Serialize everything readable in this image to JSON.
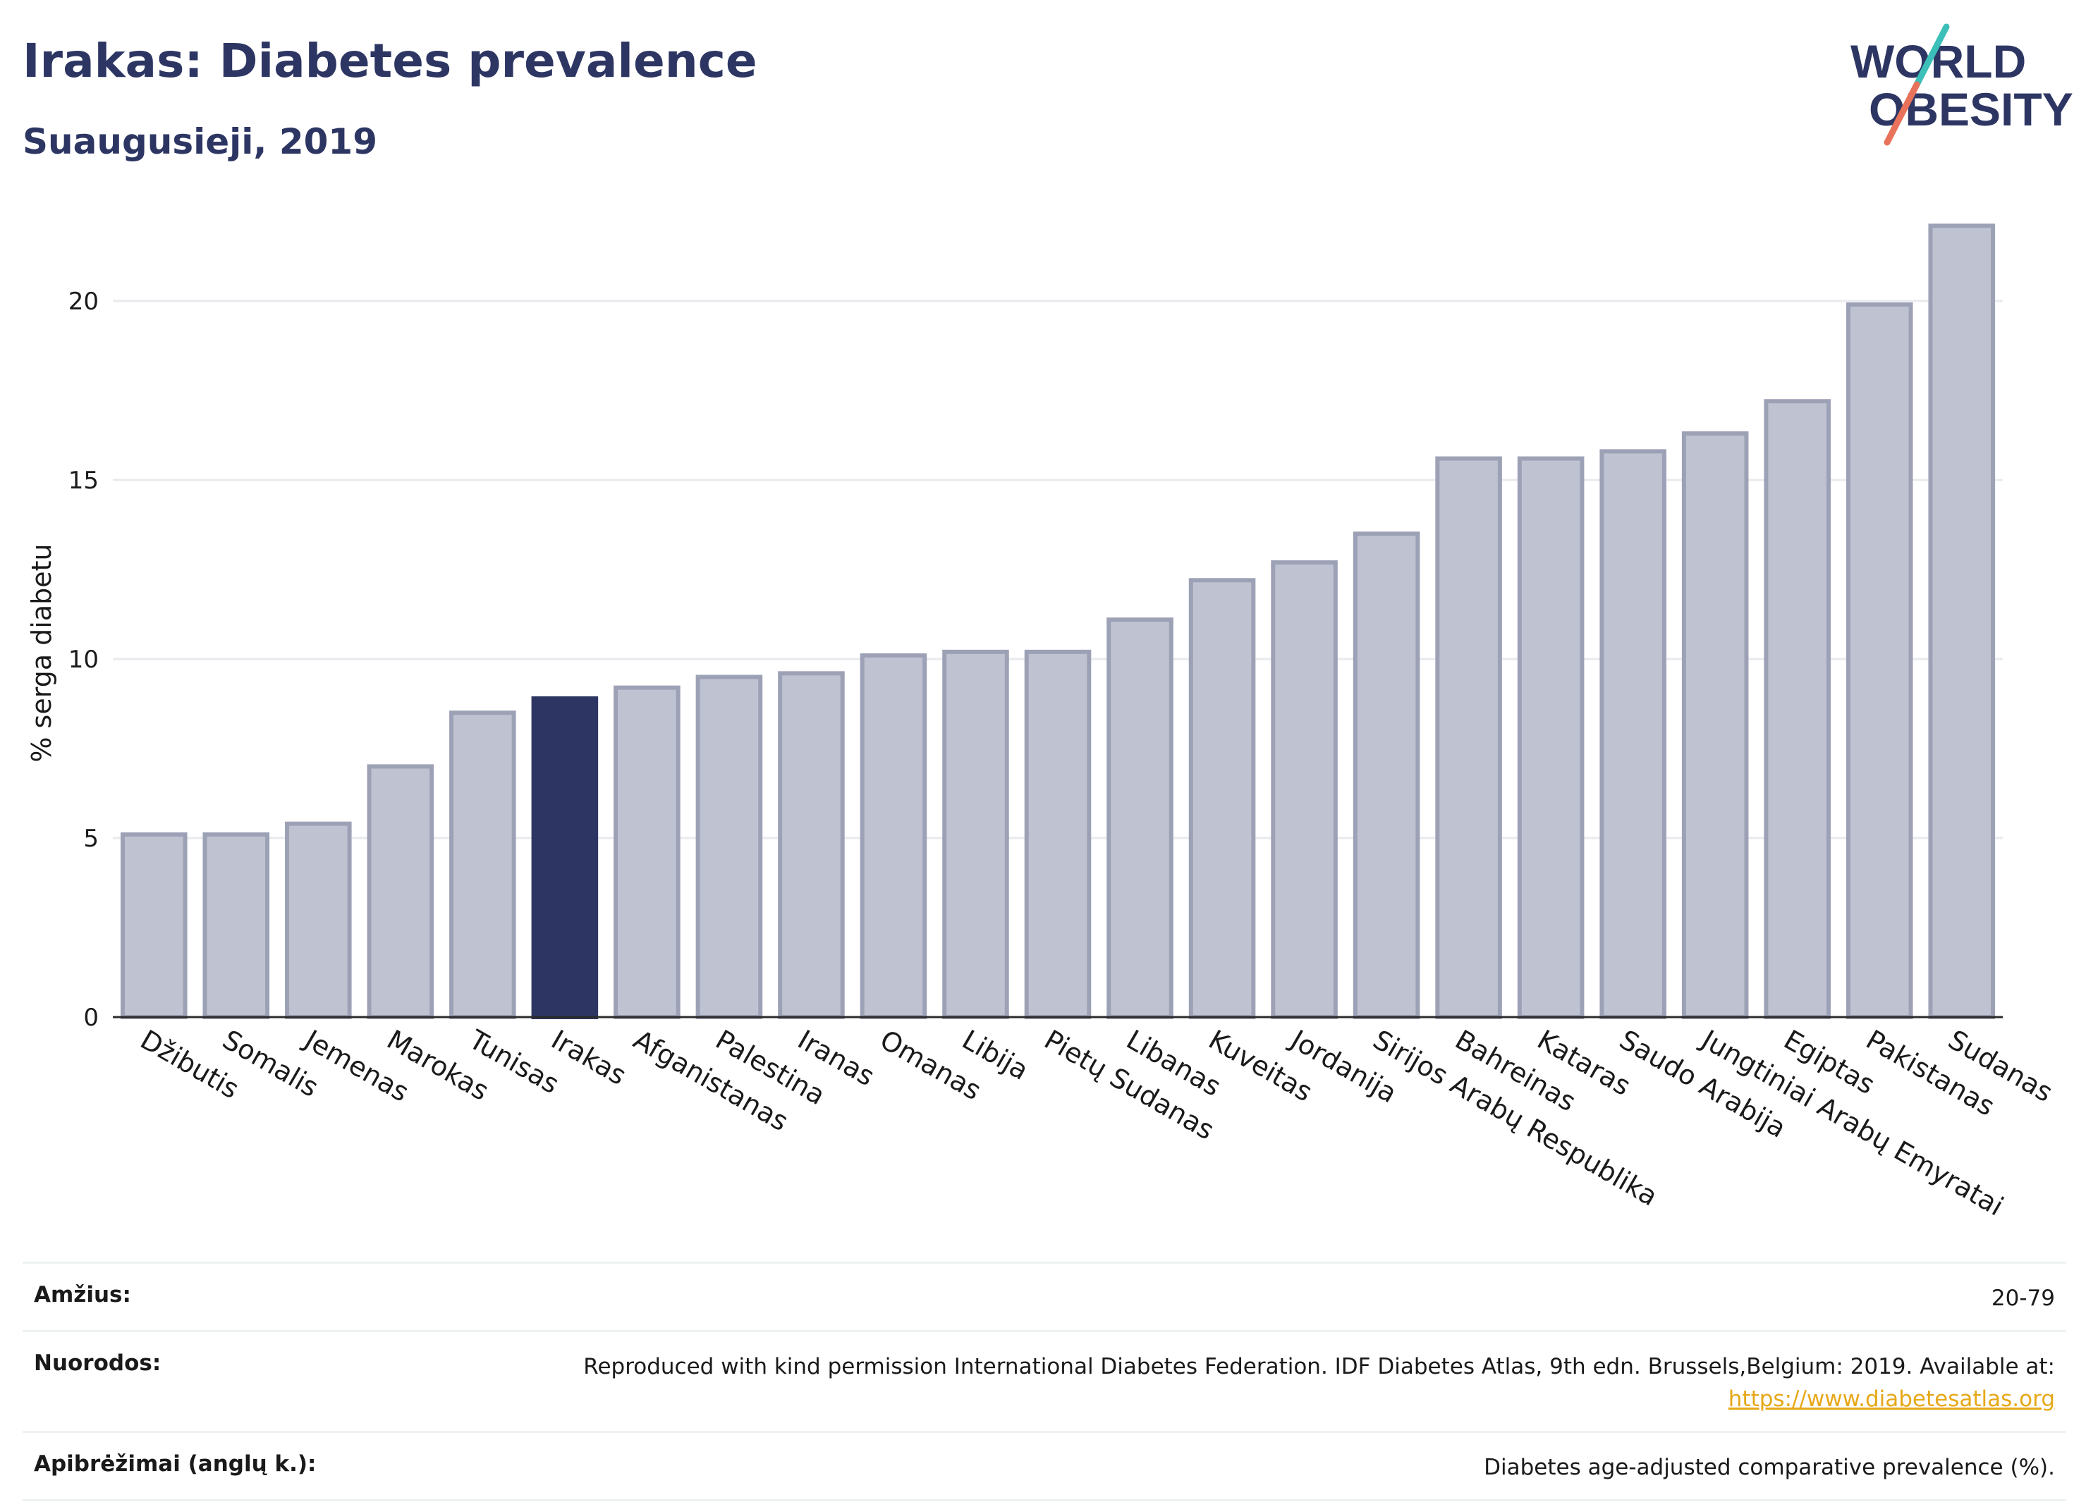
{
  "header": {
    "title": "Irakas: Diabetes prevalence",
    "subtitle": "Suaugusieji, 2019"
  },
  "logo": {
    "line1": "WORLD",
    "line2": "OBESITY",
    "icon": "world-obesity-logo",
    "colors": {
      "text": "#2d3663",
      "slash_top": "#3bbfb8",
      "slash_bottom": "#e8735a"
    }
  },
  "chart_data": {
    "type": "bar",
    "categories": [
      "Džibutis",
      "Somalis",
      "Jemenas",
      "Marokas",
      "Tunisas",
      "Irakas",
      "Afganistanas",
      "Palestina",
      "Iranas",
      "Omanas",
      "Libija",
      "Pietų Sudanas",
      "Libanas",
      "Kuveitas",
      "Jordanija",
      "Sirijos Arabų Respublika",
      "Bahreinas",
      "Kataras",
      "Saudo Arabija",
      "Jungtiniai Arabų Emyratai",
      "Egiptas",
      "Pakistanas",
      "Sudanas"
    ],
    "values": [
      5.1,
      5.1,
      5.4,
      7.0,
      8.5,
      8.9,
      9.2,
      9.5,
      9.6,
      10.1,
      10.2,
      10.2,
      11.1,
      12.2,
      12.7,
      13.5,
      15.6,
      15.6,
      15.8,
      16.3,
      17.2,
      19.9,
      22.1
    ],
    "highlight": "Irakas",
    "ylabel": "% serga diabetu",
    "xlabel": "",
    "ylim": [
      0,
      22.5
    ],
    "yticks": [
      0,
      5,
      10,
      15,
      20
    ],
    "grid": true,
    "colors": {
      "bar": "#bfc2d0",
      "bar_edge": "#9da1b6",
      "highlight": "#2d3663"
    }
  },
  "info": [
    {
      "label": "Amžius:",
      "value": "20-79"
    },
    {
      "label": "Nuorodos:",
      "value": "Reproduced with kind permission International Diabetes Federation. IDF Diabetes Atlas, 9th edn. Brussels,Belgium: 2019. Available at:",
      "link": "https://www.diabetesatlas.org"
    },
    {
      "label": "Apibrėžimai (anglų k.):",
      "value": "Diabetes age-adjusted comparative prevalence (%)."
    }
  ]
}
